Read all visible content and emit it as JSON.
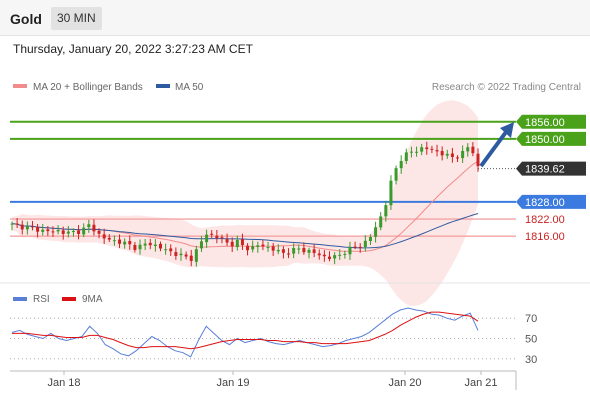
{
  "header": {
    "title": "Gold",
    "timeframe": "30 MIN"
  },
  "datetime": "Thursday, January 20, 2022 3:27:23 AM CET",
  "legend": {
    "ma20": {
      "label": "MA 20 + Bollinger Bands",
      "color": "#f28b8b"
    },
    "ma50": {
      "label": "MA 50",
      "color": "#2e5aa0"
    }
  },
  "credit": "Research © 2022 Trading Central",
  "colors": {
    "up": "#3a9a2b",
    "down": "#cc2222",
    "resistance": "#4aa21a",
    "pivot": "#3b7bdf",
    "support": "#f4a3a3",
    "support_text": "#cc2222",
    "last": "#333333",
    "arrow": "#2e5aa0",
    "rsi": "#5a7fd8",
    "rsi_ma": "#dd1111"
  },
  "chart_data": [
    {
      "type": "candlestick",
      "x_ticks": [
        "Jan 18",
        "Jan 19",
        "Jan 20",
        "Jan 21"
      ],
      "ylim": [
        1800,
        1865
      ],
      "levels": [
        {
          "value": 1856.0,
          "label": "1856.00",
          "kind": "resistance"
        },
        {
          "value": 1850.0,
          "label": "1850.00",
          "kind": "resistance"
        },
        {
          "value": 1839.62,
          "label": "1839.62",
          "kind": "last"
        },
        {
          "value": 1828.0,
          "label": "1828.00",
          "kind": "pivot"
        },
        {
          "value": 1822.0,
          "label": "1822.00",
          "kind": "support"
        },
        {
          "value": 1816.0,
          "label": "1816.00",
          "kind": "support"
        }
      ],
      "close_path": [
        1820,
        1819.5,
        1819,
        1818.5,
        1818,
        1817.5,
        1818,
        1817,
        1817.5,
        1818,
        1820,
        1817,
        1815,
        1814.5,
        1814,
        1813,
        1812,
        1813,
        1813.5,
        1812,
        1811,
        1810,
        1809,
        1808,
        1812,
        1817,
        1816,
        1815,
        1813,
        1814,
        1812,
        1812,
        1813,
        1812,
        1811,
        1810,
        1811,
        1811.5,
        1811,
        1810,
        1809,
        1808.5,
        1809,
        1811,
        1812,
        1813,
        1815,
        1820,
        1826,
        1837,
        1843,
        1845,
        1846,
        1847,
        1846,
        1845.5,
        1844,
        1843.5,
        1845,
        1848,
        1840.5
      ]
    },
    {
      "type": "line",
      "name": "RSI",
      "ylim": [
        20,
        80
      ],
      "y_ticks": [
        70,
        50,
        30
      ],
      "series": [
        {
          "name": "RSI",
          "values": [
            56,
            58,
            54,
            52,
            50,
            55,
            50,
            48,
            50,
            52,
            62,
            55,
            44,
            40,
            35,
            33,
            38,
            45,
            52,
            48,
            42,
            38,
            36,
            32,
            48,
            62,
            55,
            48,
            44,
            50,
            46,
            48,
            50,
            47,
            45,
            44,
            46,
            48,
            46,
            44,
            42,
            43,
            45,
            48,
            50,
            52,
            56,
            62,
            68,
            74,
            78,
            80,
            78,
            77,
            74,
            73,
            70,
            68,
            72,
            75,
            58
          ]
        },
        {
          "name": "9MA",
          "values": [
            55,
            55,
            55,
            54,
            53,
            53,
            52,
            51,
            51,
            51,
            53,
            53,
            51,
            49,
            46,
            43,
            41,
            41,
            42,
            42,
            42,
            42,
            41,
            40,
            41,
            43,
            45,
            47,
            48,
            49,
            49,
            49,
            49,
            48,
            48,
            47,
            47,
            47,
            46,
            46,
            45,
            45,
            45,
            45,
            46,
            47,
            48,
            51,
            54,
            58,
            63,
            67,
            71,
            74,
            76,
            76,
            75,
            74,
            73,
            72,
            67
          ]
        }
      ]
    }
  ],
  "rsi_legend": {
    "rsi": "RSI",
    "ma": "9MA"
  }
}
